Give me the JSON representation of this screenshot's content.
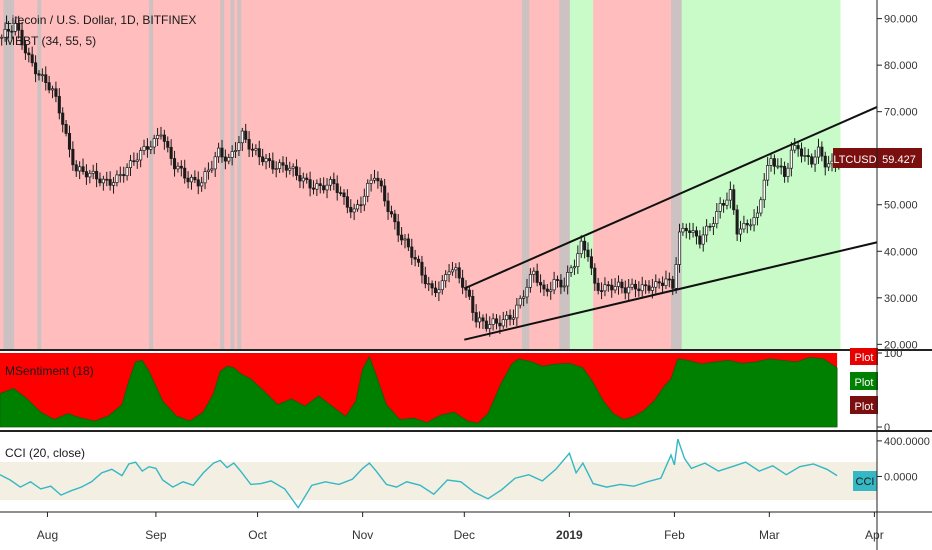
{
  "chart_data": [
    {
      "type": "candlestick",
      "title": "Litecoin / U.S. Dollar, 1D, BITFINEX",
      "indicator_label": "MBBT (34, 55, 5)",
      "symbol": "LTCUSD",
      "last_price": "59.427",
      "y_ticks": [
        "90.000",
        "80.000",
        "70.000",
        "60.000",
        "50.000",
        "40.000",
        "30.000",
        "20.000"
      ],
      "ylim": [
        19,
        94
      ],
      "x_ticks": [
        "Aug",
        "Sep",
        "Oct",
        "Nov",
        "Dec",
        "2019",
        "Feb",
        "Mar",
        "Apr"
      ],
      "x_tick_days": [
        14,
        46,
        76,
        107,
        137,
        168,
        199,
        227,
        258
      ],
      "x_range_days": [
        0,
        275
      ],
      "close_path": [
        [
          0,
          86
        ],
        [
          4,
          88
        ],
        [
          8,
          82
        ],
        [
          12,
          77
        ],
        [
          15,
          74
        ],
        [
          18,
          68
        ],
        [
          20,
          62
        ],
        [
          22,
          58
        ],
        [
          26,
          56
        ],
        [
          30,
          55
        ],
        [
          34,
          56
        ],
        [
          38,
          58
        ],
        [
          40,
          60
        ],
        [
          43,
          63
        ],
        [
          45,
          64
        ],
        [
          47,
          66
        ],
        [
          49,
          61
        ],
        [
          51,
          58
        ],
        [
          55,
          56
        ],
        [
          59,
          55
        ],
        [
          62,
          58
        ],
        [
          64,
          61
        ],
        [
          67,
          60
        ],
        [
          69,
          63
        ],
        [
          71,
          65
        ],
        [
          74,
          61
        ],
        [
          77,
          60
        ],
        [
          80,
          59
        ],
        [
          84,
          58
        ],
        [
          87,
          56
        ],
        [
          90,
          55
        ],
        [
          94,
          54
        ],
        [
          98,
          54
        ],
        [
          101,
          51
        ],
        [
          104,
          49
        ],
        [
          107,
          52
        ],
        [
          110,
          56
        ],
        [
          112,
          53
        ],
        [
          115,
          48
        ],
        [
          118,
          43
        ],
        [
          121,
          39
        ],
        [
          124,
          35
        ],
        [
          127,
          32
        ],
        [
          130,
          33
        ],
        [
          132,
          36
        ],
        [
          134,
          35
        ],
        [
          136,
          33
        ],
        [
          138,
          30
        ],
        [
          140,
          26
        ],
        [
          143,
          24
        ],
        [
          146,
          24
        ],
        [
          148,
          25
        ],
        [
          151,
          27
        ],
        [
          154,
          31
        ],
        [
          157,
          35
        ],
        [
          160,
          31
        ],
        [
          163,
          34
        ],
        [
          166,
          33
        ],
        [
          169,
          37
        ],
        [
          171,
          41
        ],
        [
          173,
          40
        ],
        [
          175,
          33
        ],
        [
          178,
          32
        ],
        [
          181,
          32
        ],
        [
          184,
          32
        ],
        [
          187,
          33
        ],
        [
          190,
          32
        ],
        [
          193,
          32
        ],
        [
          196,
          34
        ],
        [
          198,
          33
        ],
        [
          200,
          44
        ],
        [
          202,
          45
        ],
        [
          204,
          43
        ],
        [
          206,
          42
        ],
        [
          209,
          46
        ],
        [
          212,
          50
        ],
        [
          215,
          52
        ],
        [
          217,
          44
        ],
        [
          219,
          45
        ],
        [
          221,
          47
        ],
        [
          223,
          48
        ],
        [
          225,
          56
        ],
        [
          227,
          59
        ],
        [
          229,
          58
        ],
        [
          231,
          56
        ],
        [
          233,
          62
        ],
        [
          235,
          63
        ],
        [
          237,
          60
        ],
        [
          239,
          59
        ],
        [
          241,
          61
        ],
        [
          243,
          59
        ],
        [
          245,
          59
        ],
        [
          247,
          60
        ]
      ],
      "trendlines": [
        {
          "from": [
            137,
            32
          ],
          "to": [
            265,
            73
          ]
        },
        {
          "from": [
            137,
            21
          ],
          "to": [
            265,
            43
          ]
        }
      ],
      "background_zones": [
        {
          "from": 0,
          "to": 168,
          "state": "bearish"
        },
        {
          "from": 168,
          "to": 175,
          "state": "bullish"
        },
        {
          "from": 175,
          "to": 201,
          "state": "bearish"
        },
        {
          "from": 201,
          "to": 248,
          "state": "bullish"
        }
      ],
      "neutral_bars": [
        1,
        2,
        3,
        11,
        44,
        65,
        68,
        70,
        154,
        155,
        165,
        166,
        167,
        198,
        199,
        200
      ]
    },
    {
      "type": "area",
      "label": "MSentiment (18)",
      "y_ticks": [
        "100",
        "0"
      ],
      "ylim": [
        0,
        100
      ],
      "legend": [
        "Plot",
        "Plot",
        "Plot"
      ],
      "series": [
        {
          "name": "Plot",
          "color": "#008000",
          "x": [
            0,
            4,
            8,
            12,
            16,
            20,
            24,
            28,
            32,
            36,
            38,
            40,
            42,
            44,
            46,
            48,
            52,
            56,
            60,
            63,
            65,
            67,
            69,
            71,
            74,
            78,
            82,
            86,
            90,
            94,
            98,
            102,
            105,
            107,
            109,
            111,
            114,
            118,
            122,
            126,
            130,
            134,
            138,
            141,
            144,
            148,
            151,
            153,
            155,
            157,
            160,
            164,
            168,
            172,
            175,
            178,
            181,
            184,
            187,
            190,
            193,
            196,
            198,
            200,
            203,
            207,
            211,
            215,
            219,
            223,
            227,
            231,
            235,
            239,
            243,
            247
          ],
          "values": [
            45,
            52,
            38,
            20,
            10,
            18,
            12,
            8,
            15,
            30,
            62,
            88,
            90,
            75,
            55,
            35,
            15,
            8,
            20,
            45,
            75,
            82,
            80,
            72,
            65,
            48,
            30,
            38,
            28,
            42,
            28,
            14,
            35,
            78,
            95,
            70,
            30,
            10,
            12,
            6,
            16,
            20,
            8,
            5,
            18,
            60,
            85,
            92,
            90,
            88,
            82,
            85,
            86,
            80,
            60,
            35,
            18,
            10,
            14,
            22,
            35,
            55,
            65,
            92,
            90,
            85,
            88,
            90,
            86,
            88,
            92,
            90,
            88,
            94,
            92,
            80
          ]
        }
      ]
    },
    {
      "type": "line",
      "label": "CCI (20, close)",
      "y_ticks": [
        "400.0000",
        "0.0000"
      ],
      "ylim": [
        -400,
        500
      ],
      "legend": "CCI",
      "series": [
        {
          "name": "CCI",
          "color": "#35b7c4",
          "x": [
            0,
            3,
            6,
            9,
            12,
            15,
            18,
            21,
            24,
            27,
            30,
            33,
            36,
            38,
            40,
            42,
            44,
            46,
            48,
            51,
            54,
            57,
            60,
            63,
            65,
            67,
            69,
            71,
            74,
            77,
            80,
            84,
            88,
            92,
            96,
            100,
            104,
            107,
            109,
            111,
            114,
            117,
            120,
            124,
            128,
            132,
            136,
            140,
            144,
            148,
            152,
            156,
            160,
            164,
            168,
            170,
            172,
            175,
            179,
            183,
            187,
            191,
            195,
            198,
            199,
            200,
            202,
            204,
            208,
            212,
            216,
            220,
            224,
            228,
            232,
            236,
            240,
            244,
            247
          ],
          "values": [
            20,
            -40,
            -120,
            -60,
            -140,
            -110,
            -210,
            -160,
            -120,
            -60,
            40,
            80,
            10,
            140,
            160,
            60,
            110,
            90,
            -40,
            -120,
            -60,
            -100,
            40,
            150,
            180,
            100,
            150,
            60,
            -90,
            -80,
            -50,
            -140,
            -350,
            -100,
            -60,
            -90,
            -30,
            90,
            150,
            60,
            -90,
            -120,
            -60,
            -100,
            -200,
            -40,
            -60,
            -180,
            -250,
            -150,
            -20,
            20,
            -50,
            80,
            260,
            40,
            150,
            -80,
            -120,
            -90,
            -110,
            -60,
            -20,
            240,
            130,
            420,
            200,
            90,
            150,
            60,
            110,
            160,
            60,
            120,
            20,
            110,
            140,
            80,
            10
          ]
        }
      ]
    }
  ]
}
